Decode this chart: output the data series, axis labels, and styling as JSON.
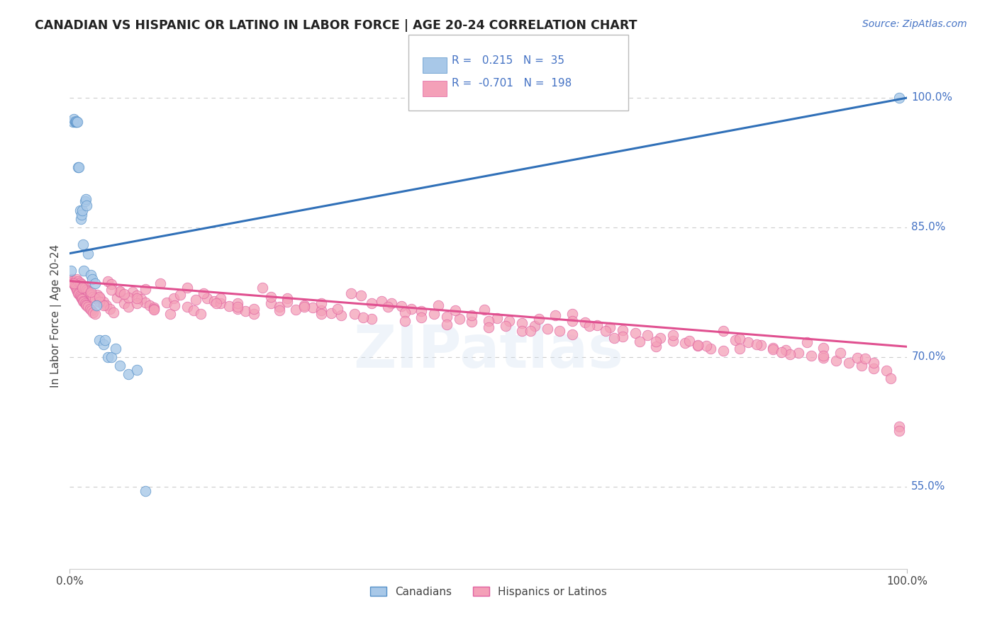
{
  "title": "CANADIAN VS HISPANIC OR LATINO IN LABOR FORCE | AGE 20-24 CORRELATION CHART",
  "source": "Source: ZipAtlas.com",
  "ylabel": "In Labor Force | Age 20-24",
  "right_yticks": [
    55.0,
    70.0,
    85.0,
    100.0
  ],
  "watermark": "ZIPatlas",
  "legend_blue_r_val": "0.215",
  "legend_blue_n_val": "35",
  "legend_pink_r_val": "-0.701",
  "legend_pink_n_val": "198",
  "color_blue_fill": "#a8c8e8",
  "color_pink_fill": "#f4a0b8",
  "color_blue_edge": "#5590c8",
  "color_pink_edge": "#e060a0",
  "color_blue_line": "#3070b8",
  "color_pink_line": "#e05090",
  "color_title": "#222222",
  "color_source": "#4472c4",
  "color_right_axis": "#4472c4",
  "color_legend_text": "#4472c4",
  "background": "#ffffff",
  "xlim": [
    0.0,
    1.0
  ],
  "ylim": [
    0.455,
    1.04
  ],
  "blue_line_y0": 0.82,
  "blue_line_y1": 1.0,
  "pink_line_y0": 0.788,
  "pink_line_y1": 0.712,
  "canadians_x": [
    0.001,
    0.004,
    0.005,
    0.006,
    0.007,
    0.007,
    0.008,
    0.009,
    0.01,
    0.011,
    0.012,
    0.013,
    0.014,
    0.015,
    0.016,
    0.017,
    0.018,
    0.019,
    0.02,
    0.022,
    0.025,
    0.027,
    0.03,
    0.032,
    0.035,
    0.04,
    0.042,
    0.045,
    0.05,
    0.055,
    0.06,
    0.07,
    0.08,
    0.09,
    0.99
  ],
  "canadians_y": [
    0.8,
    0.972,
    0.975,
    0.972,
    0.972,
    0.973,
    0.972,
    0.972,
    0.92,
    0.92,
    0.87,
    0.86,
    0.865,
    0.87,
    0.83,
    0.8,
    0.88,
    0.883,
    0.875,
    0.82,
    0.795,
    0.79,
    0.785,
    0.76,
    0.72,
    0.715,
    0.72,
    0.7,
    0.7,
    0.71,
    0.69,
    0.68,
    0.685,
    0.545,
    1.0
  ],
  "hispanics_x": [
    0.002,
    0.003,
    0.004,
    0.005,
    0.006,
    0.007,
    0.008,
    0.009,
    0.01,
    0.011,
    0.012,
    0.013,
    0.014,
    0.015,
    0.016,
    0.017,
    0.018,
    0.019,
    0.02,
    0.022,
    0.024,
    0.026,
    0.028,
    0.03,
    0.033,
    0.036,
    0.04,
    0.044,
    0.048,
    0.052,
    0.056,
    0.06,
    0.065,
    0.07,
    0.075,
    0.08,
    0.085,
    0.09,
    0.095,
    0.1,
    0.108,
    0.116,
    0.124,
    0.132,
    0.14,
    0.148,
    0.156,
    0.164,
    0.172,
    0.18,
    0.19,
    0.2,
    0.21,
    0.22,
    0.23,
    0.24,
    0.25,
    0.26,
    0.27,
    0.28,
    0.29,
    0.3,
    0.312,
    0.324,
    0.336,
    0.348,
    0.36,
    0.372,
    0.384,
    0.396,
    0.408,
    0.42,
    0.435,
    0.45,
    0.465,
    0.48,
    0.495,
    0.51,
    0.525,
    0.54,
    0.555,
    0.57,
    0.585,
    0.6,
    0.615,
    0.63,
    0.645,
    0.66,
    0.675,
    0.69,
    0.705,
    0.72,
    0.735,
    0.75,
    0.765,
    0.78,
    0.795,
    0.81,
    0.825,
    0.84,
    0.855,
    0.87,
    0.885,
    0.9,
    0.915,
    0.93,
    0.945,
    0.96,
    0.975,
    0.99,
    0.008,
    0.01,
    0.012,
    0.014,
    0.016,
    0.018,
    0.02,
    0.022,
    0.024,
    0.026,
    0.028,
    0.03,
    0.035,
    0.04,
    0.045,
    0.05,
    0.06,
    0.07,
    0.08,
    0.09,
    0.1,
    0.12,
    0.14,
    0.16,
    0.18,
    0.2,
    0.22,
    0.24,
    0.26,
    0.28,
    0.3,
    0.32,
    0.34,
    0.36,
    0.38,
    0.4,
    0.42,
    0.44,
    0.46,
    0.48,
    0.5,
    0.52,
    0.54,
    0.56,
    0.58,
    0.6,
    0.62,
    0.64,
    0.66,
    0.68,
    0.7,
    0.72,
    0.74,
    0.76,
    0.78,
    0.8,
    0.82,
    0.84,
    0.86,
    0.88,
    0.9,
    0.92,
    0.94,
    0.96,
    0.98,
    0.005,
    0.015,
    0.025,
    0.035,
    0.05,
    0.065,
    0.08,
    0.1,
    0.125,
    0.15,
    0.175,
    0.2,
    0.25,
    0.3,
    0.35,
    0.4,
    0.45,
    0.5,
    0.55,
    0.6,
    0.65,
    0.7,
    0.75,
    0.8,
    0.85,
    0.9,
    0.95,
    0.99
  ],
  "hispanics_y": [
    0.79,
    0.788,
    0.786,
    0.784,
    0.782,
    0.78,
    0.778,
    0.776,
    0.774,
    0.773,
    0.771,
    0.77,
    0.768,
    0.767,
    0.765,
    0.764,
    0.762,
    0.761,
    0.76,
    0.758,
    0.756,
    0.754,
    0.752,
    0.75,
    0.772,
    0.768,
    0.764,
    0.76,
    0.756,
    0.752,
    0.769,
    0.775,
    0.762,
    0.758,
    0.775,
    0.771,
    0.767,
    0.763,
    0.76,
    0.757,
    0.785,
    0.763,
    0.768,
    0.772,
    0.758,
    0.754,
    0.75,
    0.768,
    0.765,
    0.762,
    0.759,
    0.756,
    0.753,
    0.75,
    0.78,
    0.762,
    0.758,
    0.768,
    0.755,
    0.76,
    0.757,
    0.754,
    0.751,
    0.748,
    0.774,
    0.771,
    0.762,
    0.765,
    0.762,
    0.759,
    0.756,
    0.753,
    0.75,
    0.747,
    0.744,
    0.741,
    0.755,
    0.745,
    0.742,
    0.739,
    0.736,
    0.733,
    0.73,
    0.75,
    0.74,
    0.737,
    0.734,
    0.731,
    0.728,
    0.725,
    0.722,
    0.719,
    0.716,
    0.713,
    0.71,
    0.73,
    0.72,
    0.717,
    0.714,
    0.711,
    0.708,
    0.705,
    0.702,
    0.699,
    0.696,
    0.693,
    0.69,
    0.687,
    0.684,
    0.62,
    0.79,
    0.788,
    0.786,
    0.784,
    0.782,
    0.78,
    0.778,
    0.776,
    0.774,
    0.772,
    0.77,
    0.768,
    0.764,
    0.76,
    0.788,
    0.784,
    0.776,
    0.769,
    0.762,
    0.779,
    0.756,
    0.75,
    0.78,
    0.774,
    0.768,
    0.762,
    0.756,
    0.77,
    0.764,
    0.758,
    0.762,
    0.756,
    0.75,
    0.744,
    0.758,
    0.752,
    0.746,
    0.76,
    0.754,
    0.748,
    0.742,
    0.736,
    0.73,
    0.744,
    0.748,
    0.742,
    0.736,
    0.73,
    0.724,
    0.718,
    0.712,
    0.725,
    0.719,
    0.713,
    0.707,
    0.721,
    0.715,
    0.709,
    0.703,
    0.717,
    0.711,
    0.705,
    0.699,
    0.693,
    0.675,
    0.785,
    0.78,
    0.775,
    0.77,
    0.778,
    0.773,
    0.768,
    0.755,
    0.76,
    0.766,
    0.762,
    0.758,
    0.754,
    0.75,
    0.746,
    0.742,
    0.738,
    0.734,
    0.73,
    0.726,
    0.722,
    0.718,
    0.714,
    0.71,
    0.706,
    0.702,
    0.698,
    0.615
  ]
}
